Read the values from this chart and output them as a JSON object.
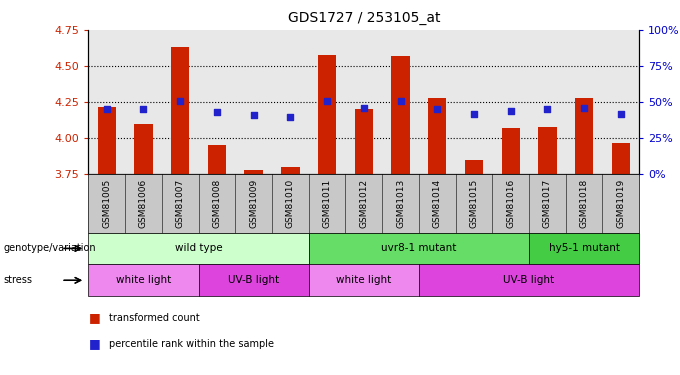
{
  "title": "GDS1727 / 253105_at",
  "samples": [
    "GSM81005",
    "GSM81006",
    "GSM81007",
    "GSM81008",
    "GSM81009",
    "GSM81010",
    "GSM81011",
    "GSM81012",
    "GSM81013",
    "GSM81014",
    "GSM81015",
    "GSM81016",
    "GSM81017",
    "GSM81018",
    "GSM81019"
  ],
  "bar_values": [
    4.22,
    4.1,
    4.63,
    3.95,
    3.78,
    3.8,
    4.58,
    4.2,
    4.57,
    4.28,
    3.85,
    4.07,
    4.08,
    4.28,
    3.97
  ],
  "percentile_values": [
    4.2,
    4.2,
    4.26,
    4.18,
    4.16,
    4.15,
    4.26,
    4.21,
    4.26,
    4.2,
    4.17,
    4.19,
    4.2,
    4.21,
    4.17
  ],
  "bar_bottom": 3.75,
  "ylim": [
    3.75,
    4.75
  ],
  "yticks": [
    3.75,
    4.0,
    4.25,
    4.5,
    4.75
  ],
  "y2ticks": [
    0,
    25,
    50,
    75,
    100
  ],
  "y2tick_labels": [
    "0%",
    "25%",
    "50%",
    "75%",
    "100%"
  ],
  "bar_color": "#cc2200",
  "dot_color": "#2222cc",
  "plot_bg_color": "#e8e8e8",
  "genotype_groups": [
    {
      "label": "wild type",
      "start": 0,
      "end": 6,
      "color": "#ccffcc"
    },
    {
      "label": "uvr8-1 mutant",
      "start": 6,
      "end": 12,
      "color": "#66dd66"
    },
    {
      "label": "hy5-1 mutant",
      "start": 12,
      "end": 15,
      "color": "#44cc44"
    }
  ],
  "stress_groups": [
    {
      "label": "white light",
      "start": 0,
      "end": 3,
      "color": "#ee88ee"
    },
    {
      "label": "UV-B light",
      "start": 3,
      "end": 6,
      "color": "#dd44dd"
    },
    {
      "label": "white light",
      "start": 6,
      "end": 9,
      "color": "#ee88ee"
    },
    {
      "label": "UV-B light",
      "start": 9,
      "end": 15,
      "color": "#dd44dd"
    }
  ],
  "legend_items": [
    {
      "color": "#cc2200",
      "label": "transformed count"
    },
    {
      "color": "#2222cc",
      "label": "percentile rank within the sample"
    }
  ],
  "axis_label_color_left": "#cc2200",
  "axis_label_color_right": "#0000cc"
}
